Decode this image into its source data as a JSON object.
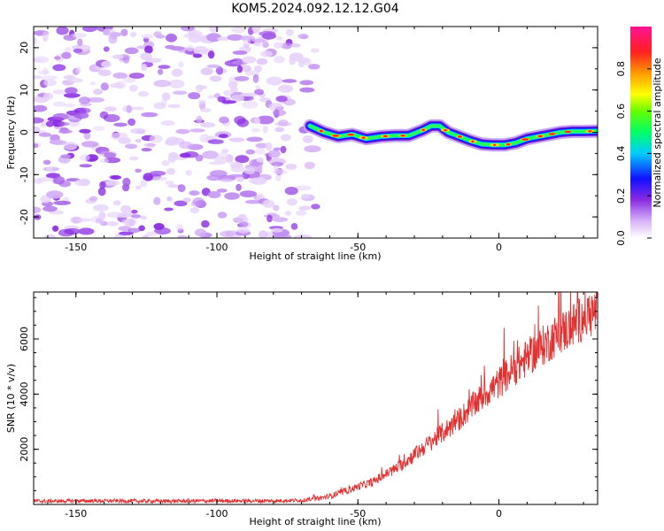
{
  "title": "KOM5.2024.092.12.12.G04",
  "top_panel": {
    "xlabel": "Height of straight line (km)",
    "ylabel": "Frequency (Hz)",
    "colorbar_label": "Normalized spectral amplitude",
    "colorbar_ticks": [
      "0.0",
      "0.2",
      "0.4",
      "0.6",
      "0.8"
    ]
  },
  "bottom_panel": {
    "xlabel": "Height of straight line (km)",
    "ylabel": "SNR (10 * v/v)"
  },
  "colors": {
    "line": "#e03030",
    "frame": "#000000",
    "noise": "#8a2be2"
  },
  "chart_data": [
    {
      "type": "heatmap",
      "xlabel": "Height of straight line (km)",
      "ylabel": "Frequency (Hz)",
      "xlim": [
        -165,
        35
      ],
      "ylim": [
        -25,
        25
      ],
      "xticks": [
        -150,
        -100,
        -50,
        0
      ],
      "yticks": [
        -20,
        -10,
        0,
        10,
        20
      ],
      "colorbar": {
        "label": "Normalized spectral amplitude",
        "range": [
          0,
          1
        ],
        "ticks": [
          0.0,
          0.2,
          0.4,
          0.6,
          0.8
        ]
      },
      "noise_region_x": [
        -165,
        -67
      ],
      "signal_trace": {
        "x": [
          -67,
          -62,
          -57,
          -52,
          -47,
          -42,
          -37,
          -32,
          -27,
          -24,
          -21,
          -18,
          -14,
          -10,
          -6,
          -2,
          2,
          6,
          10,
          14,
          18,
          22,
          26,
          30,
          35
        ],
        "frequency": [
          1.5,
          0,
          -1,
          -0.5,
          -1.5,
          -1,
          -0.8,
          -0.8,
          0.5,
          1.5,
          1.5,
          0,
          -1,
          -2,
          -2.8,
          -3,
          -3,
          -2.5,
          -1.5,
          -1,
          -0.5,
          0,
          0.2,
          0.2,
          0.3
        ]
      }
    },
    {
      "type": "line",
      "xlabel": "Height of straight line (km)",
      "ylabel": "SNR (10 * v/v)",
      "xlim": [
        -165,
        35
      ],
      "ylim": [
        0,
        7700
      ],
      "xticks": [
        -150,
        -100,
        -50,
        0
      ],
      "yticks": [
        2000,
        4000,
        6000
      ],
      "series": [
        {
          "x": [
            -165,
            -140,
            -120,
            -100,
            -80,
            -70,
            -65,
            -60,
            -55,
            -50,
            -45,
            -40,
            -35,
            -30,
            -25,
            -20,
            -15,
            -10,
            -5,
            0,
            5,
            10,
            15,
            20,
            25,
            30,
            35
          ],
          "values": [
            120,
            130,
            120,
            130,
            130,
            150,
            200,
            300,
            450,
            650,
            800,
            1100,
            1400,
            1800,
            2200,
            2600,
            3000,
            3500,
            4000,
            4400,
            4900,
            5300,
            5700,
            6100,
            6400,
            6800,
            7000
          ]
        }
      ]
    }
  ]
}
